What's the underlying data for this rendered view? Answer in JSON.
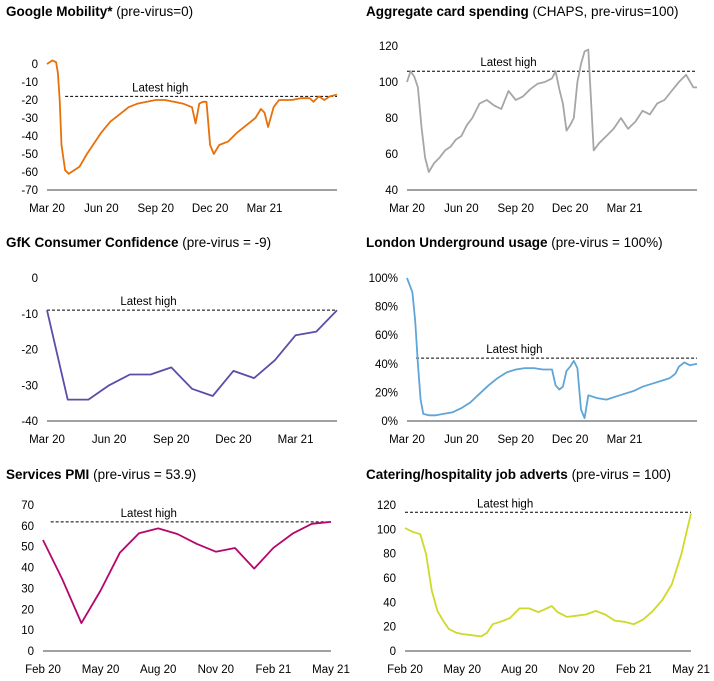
{
  "chart_data": [
    {
      "type": "line",
      "title": "Google Mobility*",
      "subtitle": "(pre-virus=0)",
      "color": "#e8700a",
      "ylim": [
        -70,
        10
      ],
      "yticks": [
        "0",
        "-10",
        "-20",
        "-30",
        "-40",
        "-50",
        "-60",
        "-70"
      ],
      "ytick_values": [
        0,
        -10,
        -20,
        -30,
        -40,
        -50,
        -60,
        -70
      ],
      "xlim": [
        0,
        16
      ],
      "xticks": [
        "Mar 20",
        "Jun 20",
        "Sep 20",
        "Dec 20",
        "Mar 21"
      ],
      "xtick_values": [
        0,
        3,
        6,
        9,
        12
      ],
      "reference_line": {
        "label": "Latest high",
        "value": -18,
        "x_start": 1
      },
      "series": [
        {
          "x": [
            0,
            0.3,
            0.5,
            0.6,
            0.7,
            0.8,
            1.0,
            1.2,
            1.5,
            1.8,
            2.2,
            2.6,
            3.0,
            3.5,
            4.0,
            4.5,
            5.0,
            5.5,
            6.0,
            6.5,
            7.0,
            7.5,
            8.0,
            8.2,
            8.4,
            8.6,
            8.8,
            9.0,
            9.2,
            9.5,
            10.0,
            10.5,
            11.0,
            11.5,
            11.8,
            12.0,
            12.2,
            12.5,
            12.8,
            13.0,
            13.5,
            14.0,
            14.5,
            14.7,
            15.0,
            15.3,
            15.6,
            16.0
          ],
          "y": [
            0,
            2,
            1,
            -5,
            -20,
            -45,
            -59,
            -61,
            -59,
            -57,
            -50,
            -44,
            -38,
            -32,
            -28,
            -24,
            -22,
            -21,
            -20,
            -20,
            -21,
            -22,
            -24,
            -33,
            -22,
            -21,
            -21,
            -45,
            -50,
            -45,
            -43,
            -38,
            -34,
            -30,
            -25,
            -27,
            -35,
            -24,
            -20,
            -20,
            -20,
            -19,
            -19,
            -21,
            -18,
            -20,
            -18,
            -17
          ]
        }
      ]
    },
    {
      "type": "line",
      "title": "Aggregate card spending",
      "subtitle": "(CHAPS, pre-virus=100)",
      "color": "#a6a6a6",
      "ylim": [
        40,
        120
      ],
      "yticks": [
        "40",
        "60",
        "80",
        "100",
        "120"
      ],
      "ytick_values": [
        40,
        60,
        80,
        100,
        120
      ],
      "xlim": [
        0,
        16
      ],
      "xticks": [
        "Mar 20",
        "Jun 20",
        "Sep 20",
        "Dec 20",
        "Mar 21"
      ],
      "xtick_values": [
        0,
        3,
        6,
        9,
        12
      ],
      "reference_line": {
        "label": "Latest high",
        "value": 106,
        "x_start": 0
      },
      "series": [
        {
          "x": [
            0,
            0.2,
            0.4,
            0.6,
            0.8,
            1.0,
            1.2,
            1.5,
            1.8,
            2.1,
            2.4,
            2.7,
            3.0,
            3.3,
            3.6,
            4.0,
            4.4,
            4.8,
            5.2,
            5.6,
            6.0,
            6.4,
            6.8,
            7.2,
            7.6,
            8.0,
            8.2,
            8.4,
            8.6,
            8.8,
            9.0,
            9.2,
            9.4,
            9.6,
            9.8,
            10.0,
            10.3,
            10.6,
            11.0,
            11.4,
            11.8,
            12.2,
            12.6,
            13.0,
            13.4,
            13.8,
            14.2,
            14.6,
            15.0,
            15.4,
            15.8,
            16.0
          ],
          "y": [
            100,
            106,
            103,
            97,
            75,
            58,
            50,
            55,
            58,
            62,
            64,
            68,
            70,
            76,
            80,
            88,
            90,
            87,
            85,
            95,
            90,
            92,
            96,
            99,
            100,
            102,
            106,
            96,
            88,
            73,
            76,
            80,
            100,
            110,
            117,
            118,
            62,
            66,
            70,
            74,
            80,
            74,
            78,
            84,
            82,
            88,
            90,
            95,
            100,
            104,
            97,
            97
          ]
        }
      ]
    },
    {
      "type": "line",
      "title": "GfK Consumer Confidence",
      "subtitle": "(pre-virus = -9)",
      "color": "#5b4da8",
      "ylim": [
        -40,
        0
      ],
      "yticks": [
        "0",
        "-10",
        "-20",
        "-30",
        "-40"
      ],
      "ytick_values": [
        0,
        -10,
        -20,
        -30,
        -40
      ],
      "xlim": [
        0,
        14
      ],
      "xticks": [
        "Mar 20",
        "Jun 20",
        "Sep 20",
        "Dec 20",
        "Mar 21"
      ],
      "xtick_values": [
        0,
        3,
        6,
        9,
        12
      ],
      "reference_line": {
        "label": "Latest high",
        "value": -9,
        "x_start": 0
      },
      "series": [
        {
          "x": [
            0,
            1,
            2,
            3,
            4,
            5,
            6,
            7,
            8,
            9,
            10,
            11,
            12,
            13,
            14
          ],
          "y": [
            -9,
            -34,
            -34,
            -30,
            -27,
            -27,
            -25,
            -31,
            -33,
            -26,
            -28,
            -23,
            -16,
            -15,
            -9
          ]
        }
      ]
    },
    {
      "type": "line",
      "title": "London Underground usage",
      "subtitle": "(pre-virus = 100%)",
      "color": "#5ea5d8",
      "ylim": [
        0,
        100
      ],
      "yticks": [
        "0%",
        "20%",
        "40%",
        "60%",
        "80%",
        "100%"
      ],
      "ytick_values": [
        0,
        20,
        40,
        60,
        80,
        100
      ],
      "xlim": [
        0,
        16
      ],
      "xticks": [
        "Mar 20",
        "Jun 20",
        "Sep 20",
        "Dec 20",
        "Mar 21"
      ],
      "xtick_values": [
        0,
        3,
        6,
        9,
        12
      ],
      "reference_line": {
        "label": "Latest high",
        "value": 44,
        "x_start": 0.5
      },
      "series": [
        {
          "x": [
            0,
            0.15,
            0.3,
            0.45,
            0.6,
            0.75,
            0.9,
            1.2,
            1.6,
            2.0,
            2.5,
            3.0,
            3.5,
            4.0,
            4.5,
            5.0,
            5.5,
            6.0,
            6.5,
            7.0,
            7.5,
            8.0,
            8.2,
            8.4,
            8.6,
            8.8,
            9.0,
            9.2,
            9.4,
            9.6,
            9.8,
            10.0,
            10.5,
            11.0,
            11.5,
            12.0,
            12.5,
            13.0,
            13.5,
            14.0,
            14.5,
            14.8,
            15.0,
            15.3,
            15.6,
            16.0
          ],
          "y": [
            100,
            95,
            90,
            70,
            40,
            15,
            5,
            4,
            4,
            5,
            6,
            9,
            13,
            19,
            25,
            30,
            34,
            36,
            37,
            37,
            36,
            36,
            25,
            22,
            24,
            35,
            38,
            42,
            37,
            8,
            2,
            18,
            16,
            15,
            17,
            19,
            21,
            24,
            26,
            28,
            30,
            33,
            38,
            41,
            39,
            40
          ]
        }
      ]
    },
    {
      "type": "line",
      "title": "Services PMI",
      "subtitle": "(pre-virus = 53.9)",
      "color": "#b5066d",
      "ylim": [
        0,
        70
      ],
      "yticks": [
        "0",
        "10",
        "20",
        "30",
        "40",
        "50",
        "60",
        "70"
      ],
      "ytick_values": [
        0,
        10,
        20,
        30,
        40,
        50,
        60,
        70
      ],
      "xlim": [
        0,
        15
      ],
      "xticks": [
        "Feb 20",
        "May 20",
        "Aug 20",
        "Nov 20",
        "Feb 21",
        "May 21"
      ],
      "xtick_values": [
        0,
        3,
        6,
        9,
        12,
        15
      ],
      "reference_line": {
        "label": "Latest high",
        "value": 61.9,
        "x_start": 0.4
      },
      "series": [
        {
          "x": [
            0,
            1,
            2,
            3,
            4,
            5,
            6,
            7,
            8,
            9,
            10,
            11,
            12,
            13,
            14,
            15
          ],
          "y": [
            53.2,
            34.5,
            13.4,
            29.0,
            47.1,
            56.5,
            58.8,
            56.1,
            51.4,
            47.6,
            49.4,
            39.5,
            49.5,
            56.3,
            61.0,
            61.9
          ]
        }
      ]
    },
    {
      "type": "line",
      "title": "Catering/hospitality job adverts",
      "subtitle": "(pre-virus = 100)",
      "color": "#cfd92a",
      "ylim": [
        0,
        120
      ],
      "yticks": [
        "0",
        "20",
        "40",
        "60",
        "80",
        "100",
        "120"
      ],
      "ytick_values": [
        0,
        20,
        40,
        60,
        80,
        100,
        120
      ],
      "xlim": [
        0,
        15
      ],
      "xticks": [
        "Feb 20",
        "May 20",
        "Aug 20",
        "Nov 20",
        "Feb 21",
        "May 21"
      ],
      "xtick_values": [
        0,
        3,
        6,
        9,
        12,
        15
      ],
      "reference_line": {
        "label": "Latest high",
        "value": 114,
        "x_start": 0
      },
      "series": [
        {
          "x": [
            0,
            0.4,
            0.8,
            1.1,
            1.4,
            1.7,
            2.0,
            2.3,
            2.7,
            3.0,
            3.5,
            4.0,
            4.3,
            4.6,
            5.0,
            5.5,
            6.0,
            6.5,
            7.0,
            7.3,
            7.7,
            8.0,
            8.5,
            9.0,
            9.5,
            10.0,
            10.5,
            11.0,
            11.5,
            12.0,
            12.5,
            13.0,
            13.5,
            14.0,
            14.5,
            14.8,
            15.0
          ],
          "y": [
            101,
            98,
            96,
            80,
            50,
            33,
            25,
            18,
            15,
            14,
            13,
            12,
            15,
            22,
            24,
            27,
            35,
            35,
            32,
            34,
            37,
            32,
            28,
            29,
            30,
            33,
            30,
            25,
            24,
            22,
            26,
            33,
            42,
            55,
            80,
            100,
            113
          ]
        }
      ]
    }
  ]
}
